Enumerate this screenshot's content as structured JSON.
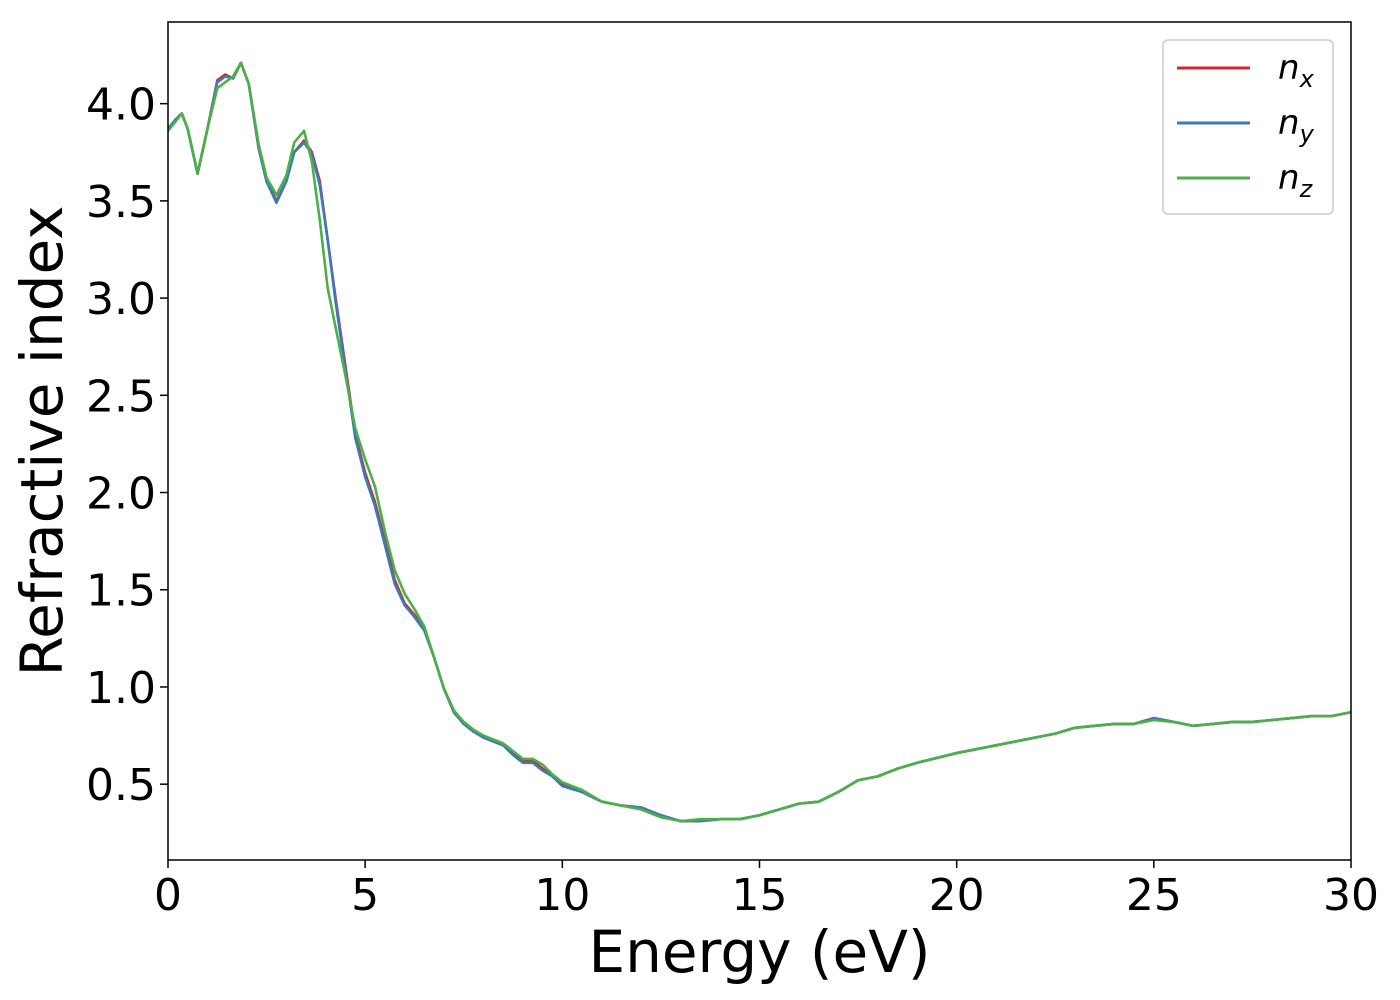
{
  "chart_data": {
    "type": "line",
    "title": "",
    "xlabel": "Energy (eV)",
    "ylabel": "Refractive index",
    "xlim": [
      0,
      30
    ],
    "ylim": [
      0.11,
      4.42
    ],
    "xticks": [
      0,
      5,
      10,
      15,
      20,
      25,
      30
    ],
    "xtick_labels": [
      "0",
      "5",
      "10",
      "15",
      "20",
      "25",
      "30"
    ],
    "yticks": [
      0.5,
      1.0,
      1.5,
      2.0,
      2.5,
      3.0,
      3.5,
      4.0
    ],
    "ytick_labels": [
      "0.5",
      "1.0",
      "1.5",
      "2.0",
      "2.5",
      "3.0",
      "3.5",
      "4.0"
    ],
    "grid": false,
    "legend_position": "top-right",
    "series": [
      {
        "name": "n_x",
        "label_base": "n",
        "label_sub": "x",
        "color": "#d62728",
        "x": [
          0,
          0.2,
          0.35,
          0.5,
          0.75,
          1.0,
          1.25,
          1.45,
          1.65,
          1.85,
          2.05,
          2.3,
          2.5,
          2.75,
          3.0,
          3.2,
          3.45,
          3.65,
          3.85,
          4.05,
          4.25,
          4.5,
          4.75,
          5.0,
          5.25,
          5.5,
          5.75,
          6.0,
          6.25,
          6.5,
          6.75,
          7.0,
          7.25,
          7.5,
          7.75,
          8.0,
          8.25,
          8.5,
          8.75,
          9.0,
          9.25,
          9.5,
          9.75,
          10.0,
          10.5,
          11.0,
          11.5,
          12.0,
          12.5,
          13.0,
          13.5,
          14.0,
          14.5,
          15.0,
          15.5,
          16.0,
          16.5,
          17.0,
          17.5,
          18.0,
          18.5,
          19.0,
          20.0,
          21.0,
          22.0,
          22.5,
          23.0,
          23.5,
          24.0,
          24.5,
          25.0,
          25.5,
          26.0,
          26.5,
          27.0,
          27.5,
          28.0,
          28.5,
          29.0,
          29.5,
          30.0
        ],
        "values": [
          3.87,
          3.92,
          3.95,
          3.87,
          3.64,
          3.87,
          4.12,
          4.15,
          4.13,
          4.21,
          4.1,
          3.77,
          3.6,
          3.5,
          3.6,
          3.75,
          3.81,
          3.75,
          3.6,
          3.3,
          3.0,
          2.65,
          2.3,
          2.1,
          1.95,
          1.75,
          1.55,
          1.43,
          1.37,
          1.3,
          1.15,
          0.99,
          0.87,
          0.81,
          0.77,
          0.74,
          0.72,
          0.7,
          0.66,
          0.62,
          0.62,
          0.58,
          0.54,
          0.5,
          0.46,
          0.41,
          0.39,
          0.38,
          0.34,
          0.31,
          0.31,
          0.32,
          0.32,
          0.34,
          0.37,
          0.4,
          0.41,
          0.46,
          0.52,
          0.54,
          0.58,
          0.61,
          0.66,
          0.7,
          0.74,
          0.76,
          0.79,
          0.8,
          0.81,
          0.81,
          0.84,
          0.82,
          0.8,
          0.81,
          0.82,
          0.82,
          0.83,
          0.84,
          0.85,
          0.85,
          0.87
        ]
      },
      {
        "name": "n_y",
        "label_base": "n",
        "label_sub": "y",
        "color": "#3a7bb8",
        "x": [
          0,
          0.2,
          0.35,
          0.5,
          0.75,
          1.0,
          1.25,
          1.45,
          1.65,
          1.85,
          2.05,
          2.3,
          2.5,
          2.75,
          3.0,
          3.2,
          3.45,
          3.65,
          3.85,
          4.05,
          4.25,
          4.5,
          4.75,
          5.0,
          5.25,
          5.5,
          5.75,
          6.0,
          6.25,
          6.5,
          6.75,
          7.0,
          7.25,
          7.5,
          7.75,
          8.0,
          8.25,
          8.5,
          8.75,
          9.0,
          9.25,
          9.5,
          9.75,
          10.0,
          10.5,
          11.0,
          11.5,
          12.0,
          12.5,
          13.0,
          13.5,
          14.0,
          14.5,
          15.0,
          15.5,
          16.0,
          16.5,
          17.0,
          17.5,
          18.0,
          18.5,
          19.0,
          20.0,
          21.0,
          22.0,
          22.5,
          23.0,
          23.5,
          24.0,
          24.5,
          25.0,
          25.5,
          26.0,
          26.5,
          27.0,
          27.5,
          28.0,
          28.5,
          29.0,
          29.5,
          30.0
        ],
        "values": [
          3.87,
          3.92,
          3.95,
          3.87,
          3.64,
          3.87,
          4.11,
          4.14,
          4.13,
          4.21,
          4.1,
          3.77,
          3.6,
          3.49,
          3.6,
          3.75,
          3.8,
          3.74,
          3.58,
          3.3,
          2.98,
          2.63,
          2.28,
          2.08,
          1.93,
          1.73,
          1.53,
          1.42,
          1.36,
          1.29,
          1.15,
          0.99,
          0.87,
          0.81,
          0.77,
          0.74,
          0.72,
          0.7,
          0.65,
          0.61,
          0.61,
          0.57,
          0.54,
          0.49,
          0.46,
          0.41,
          0.39,
          0.38,
          0.34,
          0.31,
          0.31,
          0.32,
          0.32,
          0.34,
          0.37,
          0.4,
          0.41,
          0.46,
          0.52,
          0.54,
          0.58,
          0.61,
          0.66,
          0.7,
          0.74,
          0.76,
          0.79,
          0.8,
          0.81,
          0.81,
          0.84,
          0.82,
          0.8,
          0.81,
          0.82,
          0.82,
          0.83,
          0.84,
          0.85,
          0.85,
          0.87
        ]
      },
      {
        "name": "n_z",
        "label_base": "n",
        "label_sub": "z",
        "color": "#4daf4a",
        "x": [
          0,
          0.2,
          0.35,
          0.5,
          0.75,
          1.0,
          1.25,
          1.45,
          1.65,
          1.85,
          2.05,
          2.3,
          2.5,
          2.75,
          3.0,
          3.2,
          3.45,
          3.65,
          3.85,
          4.05,
          4.25,
          4.5,
          4.75,
          5.0,
          5.25,
          5.5,
          5.75,
          6.0,
          6.25,
          6.5,
          6.75,
          7.0,
          7.25,
          7.5,
          7.75,
          8.0,
          8.25,
          8.5,
          8.75,
          9.0,
          9.25,
          9.5,
          9.75,
          10.0,
          10.5,
          11.0,
          11.5,
          12.0,
          12.5,
          13.0,
          13.5,
          14.0,
          14.5,
          15.0,
          15.5,
          16.0,
          16.5,
          17.0,
          17.5,
          18.0,
          18.5,
          19.0,
          20.0,
          21.0,
          22.0,
          22.5,
          23.0,
          23.5,
          24.0,
          24.5,
          25.0,
          25.5,
          26.0,
          26.5,
          27.0,
          27.5,
          28.0,
          28.5,
          29.0,
          29.5,
          30.0
        ],
        "values": [
          3.86,
          3.91,
          3.95,
          3.87,
          3.64,
          3.87,
          4.08,
          4.11,
          4.14,
          4.21,
          4.1,
          3.79,
          3.62,
          3.53,
          3.63,
          3.8,
          3.86,
          3.7,
          3.4,
          3.05,
          2.85,
          2.6,
          2.33,
          2.17,
          2.03,
          1.8,
          1.6,
          1.48,
          1.4,
          1.31,
          1.15,
          0.99,
          0.88,
          0.82,
          0.78,
          0.75,
          0.73,
          0.71,
          0.67,
          0.63,
          0.63,
          0.6,
          0.55,
          0.51,
          0.47,
          0.41,
          0.39,
          0.37,
          0.33,
          0.31,
          0.32,
          0.32,
          0.32,
          0.34,
          0.37,
          0.4,
          0.41,
          0.46,
          0.52,
          0.54,
          0.58,
          0.61,
          0.66,
          0.7,
          0.74,
          0.76,
          0.79,
          0.8,
          0.81,
          0.81,
          0.83,
          0.82,
          0.8,
          0.81,
          0.82,
          0.82,
          0.83,
          0.84,
          0.85,
          0.85,
          0.87
        ]
      }
    ]
  }
}
